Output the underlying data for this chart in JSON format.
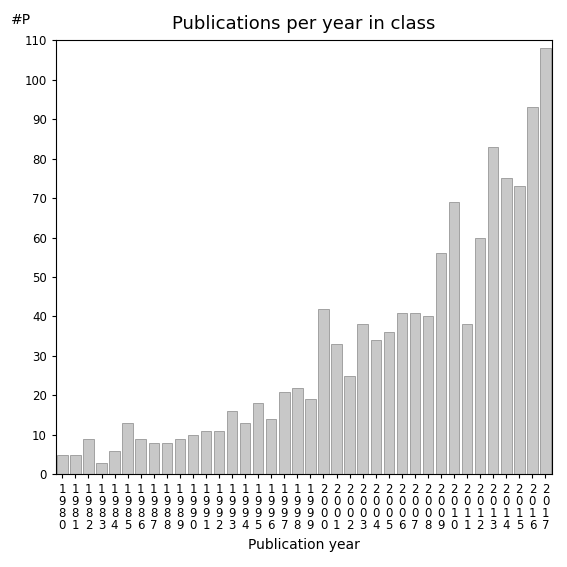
{
  "title": "Publications per year in class",
  "xlabel": "Publication year",
  "ylabel": "#P",
  "years": [
    "1980",
    "1981",
    "1982",
    "1983",
    "1984",
    "1985",
    "1986",
    "1987",
    "1988",
    "1989",
    "1990",
    "1991",
    "1992",
    "1993",
    "1994",
    "1995",
    "1996",
    "1997",
    "1998",
    "1999",
    "2000",
    "2001",
    "2002",
    "2003",
    "2004",
    "2005",
    "2006",
    "2007",
    "2008",
    "2009",
    "2010",
    "2011",
    "2012",
    "2013",
    "2014",
    "2015",
    "2016",
    "2017"
  ],
  "values": [
    5,
    5,
    9,
    3,
    6,
    13,
    9,
    8,
    8,
    9,
    10,
    11,
    11,
    16,
    13,
    18,
    14,
    21,
    22,
    19,
    42,
    33,
    25,
    38,
    34,
    36,
    41,
    41,
    40,
    56,
    69,
    38,
    60,
    83,
    75,
    73,
    93,
    108
  ],
  "bar_color": "#c8c8c8",
  "bar_edgecolor": "#888888",
  "ylim": [
    0,
    110
  ],
  "yticks": [
    0,
    10,
    20,
    30,
    40,
    50,
    60,
    70,
    80,
    90,
    100,
    110
  ],
  "background_color": "#ffffff",
  "title_fontsize": 13,
  "label_fontsize": 10,
  "tick_fontsize": 8.5
}
